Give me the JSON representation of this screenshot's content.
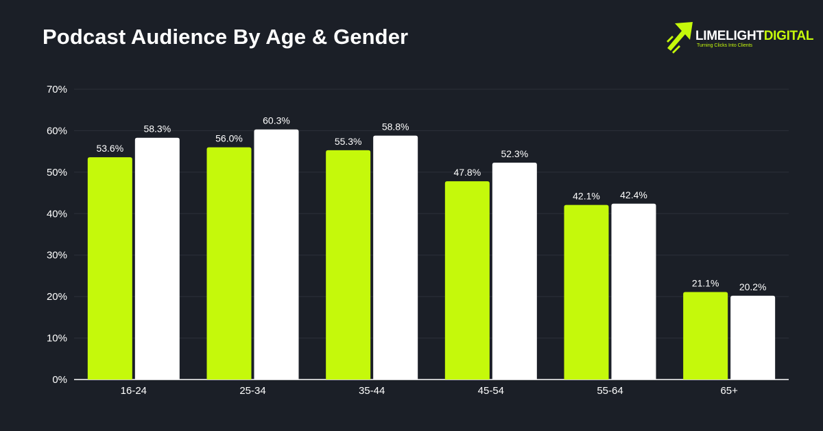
{
  "header": {
    "title": "Podcast Audience By Age & Gender"
  },
  "logo": {
    "word1": "LIMELIGHT",
    "word2": "DIGITAL",
    "tagline": "Turning Clicks Into Clients",
    "icon": "rising-arrow-icon"
  },
  "colors": {
    "background": "#1b1f27",
    "series_1": "#c5f90b",
    "series_2": "#ffffff",
    "grid": "#2c313a"
  },
  "chart_data": {
    "type": "bar",
    "categories": [
      "16-24",
      "25-34",
      "35-44",
      "45-54",
      "55-64",
      "65+"
    ],
    "series": [
      {
        "values": [
          53.6,
          56.0,
          55.3,
          47.8,
          42.1,
          21.1
        ],
        "labels": [
          "53.6%",
          "56.0%",
          "55.3%",
          "47.8%",
          "42.1%",
          "21.1%"
        ]
      },
      {
        "values": [
          58.3,
          60.3,
          58.8,
          52.3,
          42.4,
          20.2
        ],
        "labels": [
          "58.3%",
          "60.3%",
          "58.8%",
          "52.3%",
          "42.4%",
          "20.2%"
        ]
      }
    ],
    "yticks": [
      0,
      10,
      20,
      30,
      40,
      50,
      60,
      70
    ],
    "ytick_labels": [
      "0%",
      "10%",
      "20%",
      "30%",
      "40%",
      "50%",
      "60%",
      "70%"
    ],
    "ylim": [
      0,
      70
    ],
    "grid": true,
    "legend": "none",
    "title": "Podcast Audience By Age & Gender",
    "xlabel": "",
    "ylabel": ""
  }
}
